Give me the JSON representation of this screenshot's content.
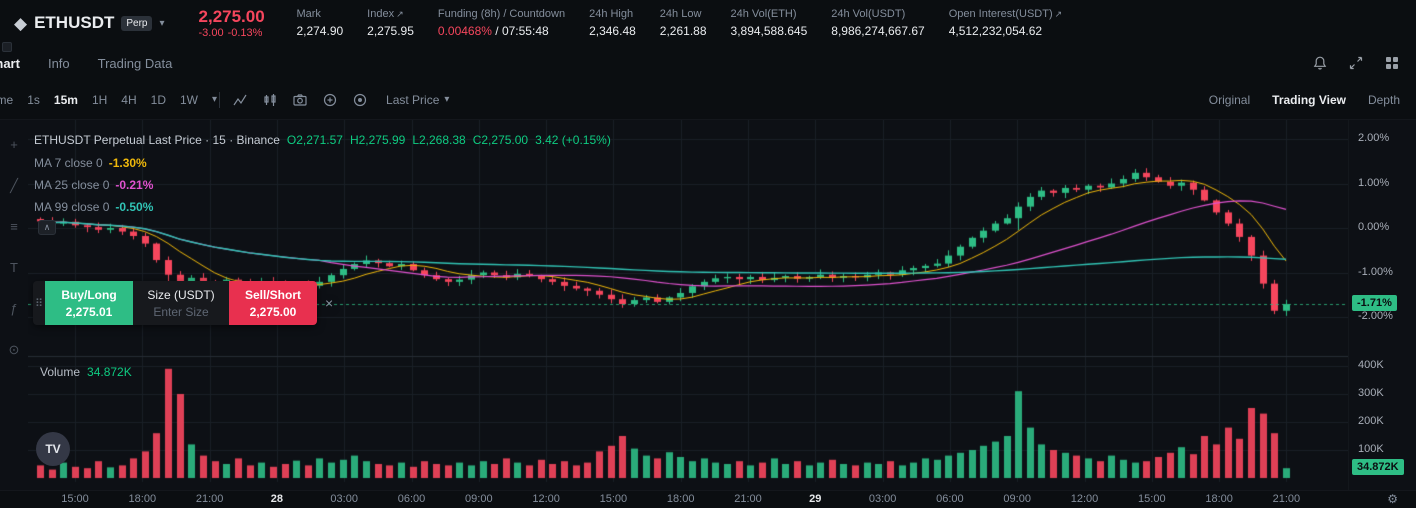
{
  "icons": {
    "diamond": "◆",
    "caret_down": "▾",
    "external": "↗",
    "gear": "⚙",
    "close": "×",
    "drag_dots": "⠿",
    "chevron_up": "∧",
    "tv_logo": "TV",
    "tool_cursor": "+",
    "tool_trendline": "╱",
    "tool_fib": "≡",
    "tool_text": "T",
    "tool_measure": "⊙",
    "tool_fx": "ƒ"
  },
  "header": {
    "symbol": "ETHUSDT",
    "contract_badge": "Perp",
    "last_price": "2,275.00",
    "change_abs": "-3.00",
    "change_pct": "-0.13%",
    "stats": {
      "mark": {
        "label": "Mark",
        "value": "2,274.90"
      },
      "index": {
        "label": "Index",
        "value": "2,275.95"
      },
      "funding": {
        "label": "Funding (8h) / Countdown",
        "rate": "0.00468%",
        "separator": " / ",
        "countdown": "07:55:48"
      },
      "high": {
        "label": "24h High",
        "value": "2,346.48"
      },
      "low": {
        "label": "24h Low",
        "value": "2,261.88"
      },
      "vol_eth": {
        "label": "24h Vol(ETH)",
        "value": "3,894,588.645"
      },
      "vol_usdt": {
        "label": "24h Vol(USDT)",
        "value": "8,986,274,667.67"
      },
      "oi": {
        "label": "Open Interest(USDT)",
        "value": "4,512,232,054.62"
      }
    }
  },
  "nav": {
    "tabs": [
      {
        "label": "Chart"
      },
      {
        "label": "Info"
      },
      {
        "label": "Trading Data"
      }
    ]
  },
  "toolbar": {
    "time_label": "Time",
    "timeframes": [
      "1s",
      "15m",
      "1H",
      "4H",
      "1D",
      "1W"
    ],
    "active_timeframe": "15m",
    "price_mode": "Last Price",
    "views": [
      "Original",
      "Trading View",
      "Depth"
    ],
    "active_view": "Trading View"
  },
  "chart_overlay": {
    "title": "ETHUSDT Perpetual Last Price · 15 · Binance",
    "ohlc": {
      "o": "O2,271.57",
      "h": "H2,275.99",
      "l": "L2,268.38",
      "c": "C2,275.00",
      "chg": "3.42 (+0.15%)"
    },
    "ma": [
      {
        "label": "MA 7 close 0",
        "value": "-1.30%",
        "color": "#f0b90b"
      },
      {
        "label": "MA 25 close 0",
        "value": "-0.21%",
        "color": "#e052cf"
      },
      {
        "label": "MA 99 close 0",
        "value": "-0.50%",
        "color": "#31c4b5"
      }
    ]
  },
  "order_widget": {
    "buy_label": "Buy/Long",
    "buy_price": "2,275.01",
    "size_label": "Size (USDT)",
    "size_placeholder": "Enter Size",
    "sell_label": "Sell/Short",
    "sell_price": "2,275.00"
  },
  "volume_overlay": {
    "label": "Volume",
    "value": "34.872K"
  },
  "axes": {
    "price_labels": [
      "2.00%",
      "1.00%",
      "0.00%",
      "-1.00%",
      "-2.00%"
    ],
    "price_badge": "-1.71%",
    "volume_labels": [
      "400K",
      "300K",
      "200K",
      "100K"
    ],
    "volume_badge": "34.872K",
    "time_labels": [
      "15:00",
      "18:00",
      "21:00",
      "28",
      "03:00",
      "06:00",
      "09:00",
      "12:00",
      "15:00",
      "18:00",
      "21:00",
      "29",
      "03:00",
      "06:00",
      "09:00",
      "12:00",
      "15:00",
      "18:00",
      "21:00"
    ]
  },
  "chart_data": {
    "type": "candlestick",
    "symbol": "ETHUSDT Perpetual",
    "interval": "15m",
    "scale": "percent",
    "ylim": [
      -2.3,
      2.3
    ],
    "last_pct": -1.71,
    "last_volume_k": 34.872,
    "ma_windows": [
      7,
      25,
      99
    ],
    "closes_pct": [
      0.15,
      0.1,
      0.14,
      0.06,
      0.02,
      -0.04,
      0.0,
      -0.08,
      -0.18,
      -0.35,
      -0.72,
      -1.05,
      -1.32,
      -1.12,
      -1.22,
      -1.27,
      -1.16,
      -1.26,
      -1.31,
      -1.21,
      -1.28,
      -1.33,
      -1.26,
      -1.3,
      -1.21,
      -1.06,
      -0.92,
      -0.81,
      -0.73,
      -0.79,
      -0.86,
      -0.81,
      -0.95,
      -1.06,
      -1.15,
      -1.21,
      -1.16,
      -1.06,
      -1.0,
      -1.06,
      -1.11,
      -1.03,
      -1.08,
      -1.15,
      -1.21,
      -1.3,
      -1.36,
      -1.41,
      -1.5,
      -1.6,
      -1.71,
      -1.62,
      -1.56,
      -1.66,
      -1.56,
      -1.46,
      -1.31,
      -1.21,
      -1.13,
      -1.1,
      -1.15,
      -1.1,
      -1.17,
      -1.12,
      -1.08,
      -1.14,
      -1.1,
      -1.05,
      -1.12,
      -1.08,
      -1.11,
      -1.05,
      -1.0,
      -1.05,
      -0.95,
      -0.9,
      -0.85,
      -0.8,
      -0.62,
      -0.42,
      -0.22,
      -0.06,
      0.1,
      0.22,
      0.48,
      0.7,
      0.84,
      0.79,
      0.9,
      0.86,
      0.95,
      0.91,
      1.0,
      1.1,
      1.24,
      1.14,
      1.04,
      0.95,
      1.02,
      0.86,
      0.62,
      0.35,
      0.1,
      -0.2,
      -0.62,
      -1.25,
      -1.86,
      -1.71
    ],
    "volumes_k": [
      45,
      30,
      55,
      40,
      35,
      60,
      38,
      45,
      70,
      95,
      160,
      390,
      300,
      120,
      80,
      60,
      50,
      70,
      45,
      55,
      40,
      50,
      62,
      45,
      70,
      55,
      65,
      80,
      60,
      50,
      45,
      55,
      40,
      60,
      50,
      45,
      55,
      45,
      60,
      50,
      70,
      55,
      45,
      65,
      50,
      60,
      45,
      55,
      95,
      115,
      150,
      105,
      80,
      70,
      92,
      75,
      60,
      70,
      55,
      50,
      60,
      45,
      55,
      70,
      50,
      60,
      45,
      55,
      65,
      50,
      45,
      55,
      50,
      60,
      45,
      55,
      70,
      65,
      80,
      90,
      100,
      115,
      130,
      150,
      310,
      180,
      120,
      100,
      90,
      80,
      70,
      60,
      80,
      65,
      55,
      60,
      75,
      90,
      110,
      85,
      150,
      120,
      180,
      140,
      250,
      230,
      160,
      35
    ]
  },
  "colors": {
    "up": "#2ebd85",
    "down": "#f6465d",
    "ma7": "#f0b90b",
    "ma25": "#e052cf",
    "ma99": "#31c4b5",
    "accent": "#f0b90b"
  }
}
